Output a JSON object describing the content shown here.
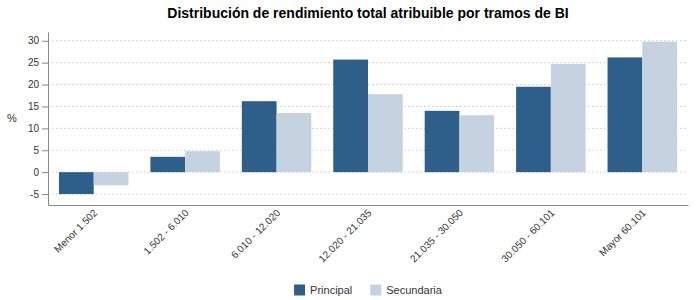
{
  "chart_data": {
    "type": "bar",
    "title": "Distribución de rendimiento total atribuible por tramos de BI",
    "categories": [
      "Menor 1.502",
      "1.502 - 6.010",
      "6.010 - 12.020",
      "12.020 - 21.035",
      "21.035 - 30.050",
      "30.050 - 60.101",
      "Mayor 60.101"
    ],
    "series": [
      {
        "name": "Principal",
        "color": "#2E5F8A",
        "values": [
          -5.0,
          3.5,
          16.2,
          25.7,
          14.0,
          19.5,
          26.2
        ]
      },
      {
        "name": "Secundaria",
        "color": "#C5D3E0",
        "values": [
          -3.0,
          4.8,
          13.5,
          17.8,
          13.0,
          24.7,
          29.8
        ]
      }
    ],
    "ylabel": "%",
    "ylim": [
      -7.5,
      32
    ],
    "yticks": [
      -5,
      0,
      5,
      10,
      15,
      20,
      25,
      30
    ],
    "grid": true,
    "legend": "bottom"
  }
}
